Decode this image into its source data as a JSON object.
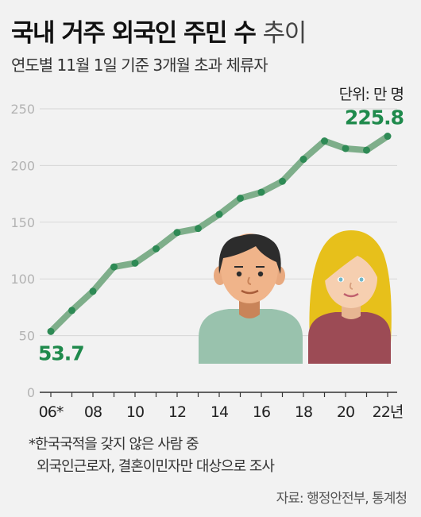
{
  "title": {
    "bold": "국내 거주 외국인 주민 수",
    "light": "추이"
  },
  "subtitle": "연도별 11월 1일 기준 3개월 초과 체류자",
  "unit_label": "단위: 만 명",
  "notes": [
    "*한국국적을 갖지 않은 사람 중",
    "외국인근로자, 결혼이민자만 대상으로 조사"
  ],
  "source": "자료: 행정안전부, 통계청",
  "chart_data": {
    "type": "line",
    "x": [
      2006,
      2007,
      2008,
      2009,
      2010,
      2011,
      2012,
      2013,
      2014,
      2015,
      2016,
      2017,
      2018,
      2019,
      2020,
      2021,
      2022
    ],
    "values": [
      53.7,
      72.2,
      89.1,
      110.6,
      113.9,
      126.6,
      140.9,
      144.5,
      156.9,
      171.1,
      176.4,
      186.1,
      205.5,
      221.6,
      215.0,
      213.5,
      225.8
    ],
    "ylim": [
      0,
      250
    ],
    "yticks": [
      0,
      50,
      100,
      150,
      200,
      250
    ],
    "xtick_labels": [
      {
        "x": 2006,
        "label": "06*"
      },
      {
        "x": 2008,
        "label": "08"
      },
      {
        "x": 2010,
        "label": "10"
      },
      {
        "x": 2012,
        "label": "12"
      },
      {
        "x": 2014,
        "label": "14"
      },
      {
        "x": 2016,
        "label": "16"
      },
      {
        "x": 2018,
        "label": "18"
      },
      {
        "x": 2020,
        "label": "20"
      },
      {
        "x": 2022,
        "label": "22년"
      }
    ],
    "annotations": [
      {
        "x": 2006,
        "label": "53.7"
      },
      {
        "x": 2022,
        "label": "225.8"
      }
    ],
    "grid": true,
    "colors": {
      "line": "#7eae8a",
      "point": "#2e8a55",
      "label": "#1f8a4c"
    }
  }
}
